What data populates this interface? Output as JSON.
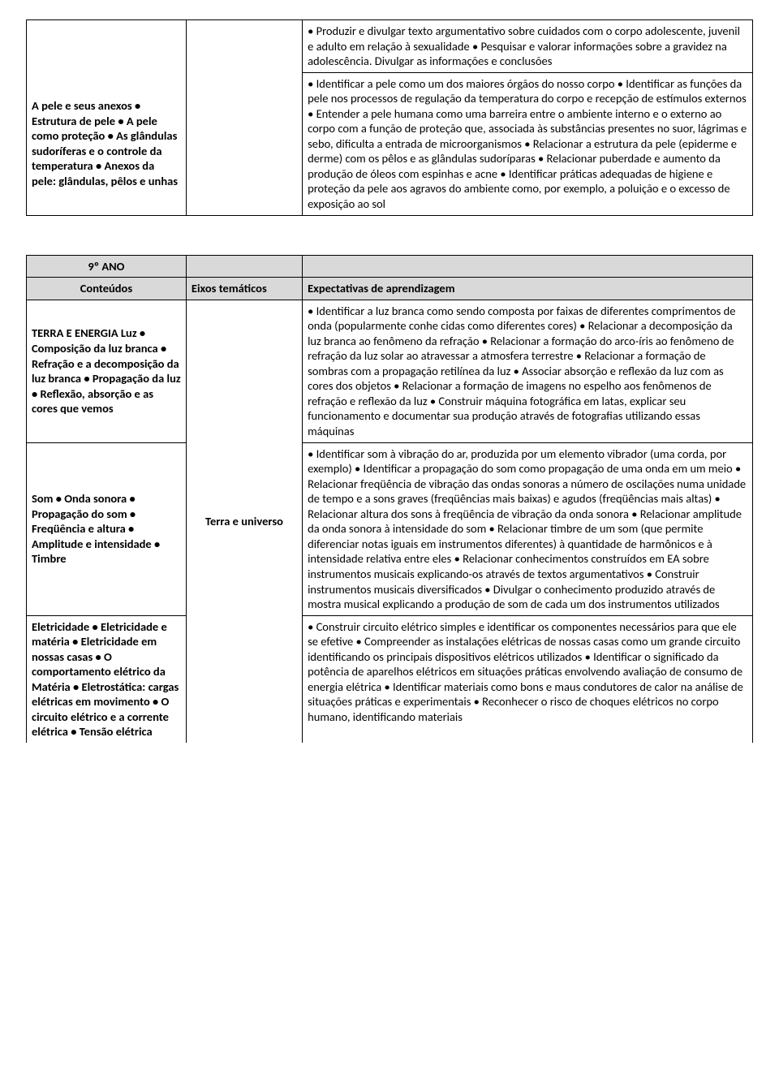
{
  "table1": {
    "row1_col1": "",
    "row1_col3": "• Produzir e divulgar texto argumentativo sobre cuidados com o corpo adolescente, juvenil e adulto em relação à\nsexualidade\n• Pesquisar e valorar informações sobre a gravidez na adolescência. Divulgar as informações e conclusões",
    "row2_col1": "A pele e seus anexos\n• Estrutura de pele\n• A pele como proteção\n• As glândulas sudoríferas e o controle da temperatura\n• Anexos da pele: glândulas, pêlos e unhas",
    "row2_col3": "• Identificar a pele como um dos maiores órgãos do nosso corpo\n• Identificar as funções da pele nos processos de regulação da temperatura do corpo e recepção de estímulos\nexternos\n• Entender a pele humana como uma barreira entre o ambiente interno e o externo ao corpo com a função de\nproteção que, associada às substâncias presentes no suor, lágrimas e sebo, dificulta a entrada de microorganismos\n• Relacionar a estrutura da pele (epiderme e derme) com os pêlos e as glândulas sudoríparas\n• Relacionar puberdade e aumento da produção de óleos com espinhas e acne\n• Identificar práticas adequadas de higiene e proteção da pele aos agravos do ambiente como, por exemplo, a\npoluição e o excesso de exposição ao sol"
  },
  "table2": {
    "hdr_ano": "9º ANO",
    "hdr_conteudos": "Conteúdos",
    "hdr_eixos": "Eixos temáticos",
    "hdr_expect": "Expectativas de aprendizagem",
    "eixo": "Terra e universo",
    "r1_col1": "TERRA E ENERGIA\nLuz\n• Composição da luz branca\n• Refração e a decomposição da luz branca\n• Propagação da luz\n• Reflexão, absorção e as cores que vemos",
    "r1_col3": "• Identificar a luz branca como sendo composta por faixas de diferentes comprimentos de onda (popularmente conhe\ncidas como diferentes cores)\n• Relacionar a decomposição da luz branca ao fenômeno da refração\n• Relacionar a formação do arco-íris ao fenômeno de refração da luz solar ao atravessar a atmosfera terrestre\n• Relacionar a formação de sombras com a propagação retilínea da luz\n• Associar absorção e reflexão da luz com as cores dos objetos\n• Relacionar a formação de imagens no espelho aos fenômenos de refração e reflexão da luz\n• Construir máquina fotográfica em latas, explicar seu funcionamento e documentar sua produção através de fotografias\nutilizando essas máquinas",
    "r2_col1": "Som\n• Onda sonora\n• Propagação do som\n• Freqüência e altura\n• Amplitude e intensidade\n• Timbre",
    "r2_col3": "• Identificar som à vibração do ar, produzida por um elemento vibrador (uma corda, por exemplo)\n• Identificar a propagação do som como propagação de uma onda em um meio\n• Relacionar freqüência de vibração das ondas sonoras a número de oscilações numa unidade de tempo e a sons\ngraves (freqüências mais baixas) e agudos (freqüências mais altas)\n• Relacionar altura dos sons à freqüência de vibração da onda sonora\n• Relacionar amplitude da onda sonora à intensidade do som\n• Relacionar timbre de um som (que permite diferenciar notas iguais em instrumentos diferentes) à quantidade\nde harmônicos e à intensidade relativa entre eles\n• Relacionar conhecimentos construídos em EA sobre instrumentos musicais explicando-os através de textos\nargumentativos\n• Construir instrumentos musicais diversificados\n• Divulgar o conhecimento produzido através de mostra musical explicando a produção de som de cada um dos\ninstrumentos utilizados",
    "r3_col1": "Eletricidade\n• Eletricidade e matéria\n• Eletricidade em nossas casas\n• O comportamento elétrico da Matéria\n• Eletrostática: cargas elétricas em movimento\n• O circuito elétrico e a corrente elétrica\n• Tensão elétrica",
    "r3_col3": "• Construir circuito elétrico simples e identificar os componentes necessários para que ele se efetive\n• Compreender as instalações elétricas de nossas casas como um grande circuito identificando os principais dispositivos\nelétricos utilizados\n• Identificar o significado da potência de aparelhos elétricos em situações práticas envolvendo avaliação de consumo de\nenergia elétrica\n• Identificar materiais como bons e maus condutores de calor na análise de situações práticas e experimentais\n• Reconhecer o risco de choques elétricos no corpo humano, identificando materiais"
  }
}
